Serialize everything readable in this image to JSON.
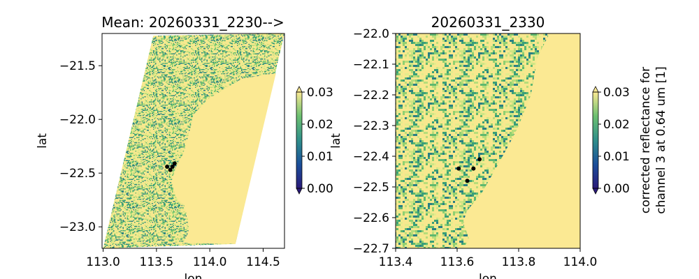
{
  "chart_data": [
    {
      "type": "heatmap",
      "title": "Mean: 20260331_2230-->",
      "xlabel": "lon",
      "ylabel": "lat",
      "xlim": [
        112.99,
        114.7
      ],
      "ylim": [
        -23.2,
        -21.2
      ],
      "xticks": [
        113.0,
        113.5,
        114.0,
        114.5
      ],
      "xtick_labels": [
        "113.0",
        "113.5",
        "114.0",
        "114.5"
      ],
      "yticks": [
        -21.5,
        -22.0,
        -22.5,
        -23.0
      ],
      "ytick_labels": [
        "−21.5",
        "−22.0",
        "−22.5",
        "−23.0"
      ],
      "swath_outline": [
        [
          113.47,
          -21.22
        ],
        [
          114.7,
          -21.2
        ],
        [
          114.24,
          -23.16
        ],
        [
          113.0,
          -23.2
        ]
      ],
      "uniform_region_outline": [
        [
          114.62,
          -21.57
        ],
        [
          114.3,
          -21.62
        ],
        [
          114.0,
          -21.8
        ],
        [
          113.85,
          -21.95
        ],
        [
          113.8,
          -22.15
        ],
        [
          113.75,
          -22.32
        ],
        [
          113.68,
          -22.45
        ],
        [
          113.64,
          -22.58
        ],
        [
          113.68,
          -22.72
        ],
        [
          113.76,
          -22.8
        ],
        [
          113.8,
          -22.95
        ],
        [
          113.8,
          -23.05
        ],
        [
          113.75,
          -23.15
        ],
        [
          114.24,
          -23.16
        ]
      ],
      "points": [
        [
          113.6,
          -22.44
        ],
        [
          113.65,
          -22.44
        ],
        [
          113.67,
          -22.41
        ],
        [
          113.63,
          -22.47
        ]
      ],
      "colorbar": {
        "label": "",
        "ticks": [
          "0.00",
          "0.01",
          "0.02",
          "0.03"
        ],
        "range": [
          0,
          0.03
        ],
        "extend": "both"
      }
    },
    {
      "type": "heatmap",
      "title": "20260331_2330",
      "xlabel": "lon",
      "ylabel": "lat",
      "xlim": [
        113.4,
        114.0
      ],
      "ylim": [
        -22.7,
        -22.0
      ],
      "xticks": [
        113.4,
        113.6,
        113.8,
        114.0
      ],
      "xtick_labels": [
        "113.4",
        "113.6",
        "113.8",
        "114.0"
      ],
      "yticks": [
        -22.0,
        -22.1,
        -22.2,
        -22.3,
        -22.4,
        -22.5,
        -22.6,
        -22.7
      ],
      "ytick_labels": [
        "−22.0",
        "−22.1",
        "−22.2",
        "−22.3",
        "−22.4",
        "−22.5",
        "−22.6",
        "−22.7"
      ],
      "swath_outline": [
        [
          113.4,
          -22.0
        ],
        [
          114.0,
          -22.0
        ],
        [
          114.0,
          -22.7
        ],
        [
          113.4,
          -22.7
        ]
      ],
      "uniform_region_outline": [
        [
          113.9,
          -22.0
        ],
        [
          113.86,
          -22.08
        ],
        [
          113.84,
          -22.2
        ],
        [
          113.8,
          -22.3
        ],
        [
          113.77,
          -22.36
        ],
        [
          113.72,
          -22.45
        ],
        [
          113.68,
          -22.52
        ],
        [
          113.63,
          -22.58
        ],
        [
          113.62,
          -22.62
        ],
        [
          113.64,
          -22.67
        ],
        [
          113.62,
          -22.7
        ],
        [
          114.0,
          -22.7
        ],
        [
          114.0,
          -22.0
        ]
      ],
      "points": [
        [
          113.605,
          -22.44
        ],
        [
          113.653,
          -22.44
        ],
        [
          113.673,
          -22.41
        ],
        [
          113.633,
          -22.48
        ]
      ],
      "colorbar": {
        "label_lines": [
          "corrected reflectance for",
          "channel 3 at 0.64 um [1]"
        ],
        "ticks": [
          "0.00",
          "0.01",
          "0.02",
          "0.03"
        ],
        "range": [
          0,
          0.03
        ],
        "extend": "both"
      }
    }
  ],
  "colors": {
    "high": "#fbe993",
    "mid": "#5fb870",
    "low": "#1f2a8c",
    "point": "#000000"
  }
}
